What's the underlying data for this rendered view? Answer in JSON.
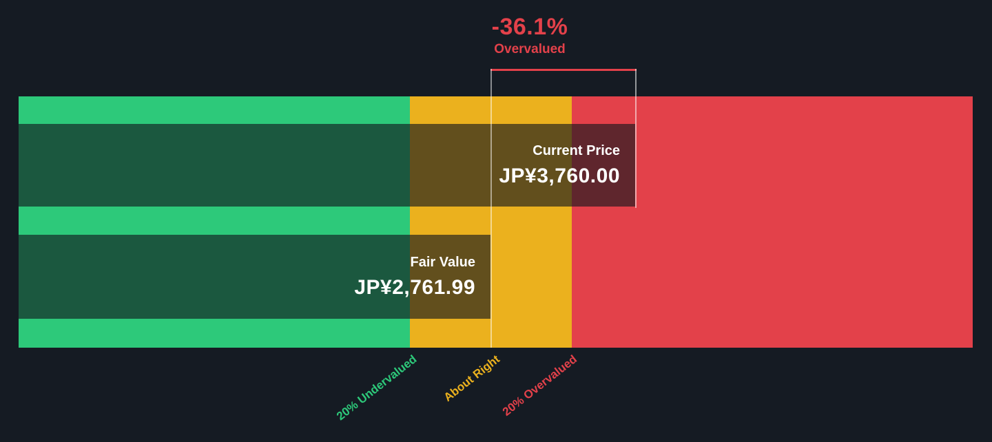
{
  "colors": {
    "background": "#151b23",
    "green": "#2dc97a",
    "yellow": "#ebb11e",
    "red": "#e3414a",
    "text": "#ffffff"
  },
  "chart_data": {
    "type": "bar",
    "orientation": "horizontal",
    "annotation": {
      "percent": "-36.1%",
      "label": "Overvalued"
    },
    "bars": [
      {
        "name": "Current Price",
        "value": 3760.0,
        "display": "JP¥3,760.00",
        "currency": "JPY"
      },
      {
        "name": "Fair Value",
        "value": 2761.99,
        "display": "JP¥2,761.99",
        "currency": "JPY"
      }
    ],
    "zones": [
      {
        "label": "20% Undervalued",
        "color": "#2dc97a"
      },
      {
        "label": "About Right",
        "color": "#ebb11e"
      },
      {
        "label": "20% Overvalued",
        "color": "#e3414a"
      }
    ]
  }
}
